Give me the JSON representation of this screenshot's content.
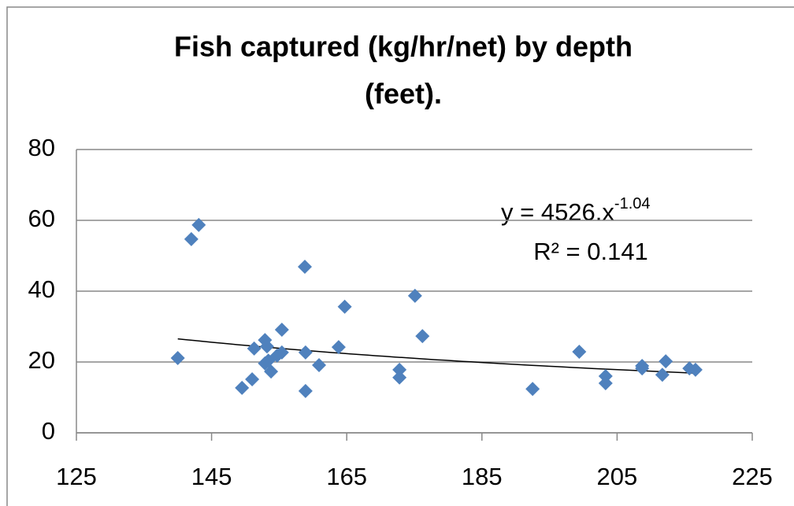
{
  "chart_data": {
    "type": "scatter",
    "title": [
      "Fish captured (kg/hr/net) by depth",
      "(feet)."
    ],
    "x": [
      140.0,
      142.0,
      143.1,
      149.5,
      151.0,
      151.3,
      152.9,
      152.9,
      153.2,
      153.4,
      153.8,
      154.7,
      155.4,
      155.4,
      158.8,
      158.9,
      158.9,
      160.9,
      163.8,
      164.7,
      172.8,
      172.8,
      175.1,
      176.2,
      192.5,
      199.4,
      203.3,
      203.3,
      208.7,
      208.7,
      211.7,
      212.2,
      215.7,
      216.6
    ],
    "values": [
      21.1,
      54.7,
      58.7,
      12.7,
      15.1,
      23.8,
      26.2,
      19.6,
      24.4,
      20.4,
      17.3,
      21.8,
      22.7,
      29.1,
      46.9,
      22.7,
      11.8,
      19.1,
      24.2,
      35.6,
      17.8,
      15.6,
      38.7,
      27.3,
      12.4,
      22.9,
      16.0,
      14.0,
      18.9,
      18.2,
      16.4,
      20.2,
      18.2,
      17.8
    ],
    "color": "#4f81bd",
    "xlim": [
      125,
      225
    ],
    "xticks": [
      125,
      145,
      165,
      185,
      205,
      225
    ],
    "ylim": [
      0,
      80
    ],
    "yticks": [
      0,
      20,
      40,
      60,
      80
    ],
    "grid": true,
    "trendline": {
      "equation": "y = 4526.x",
      "exponent": "-1.04",
      "r2": "R² = 0.141",
      "coef": 4526,
      "power": -1.04,
      "x_range": [
        140,
        216.6
      ]
    }
  }
}
